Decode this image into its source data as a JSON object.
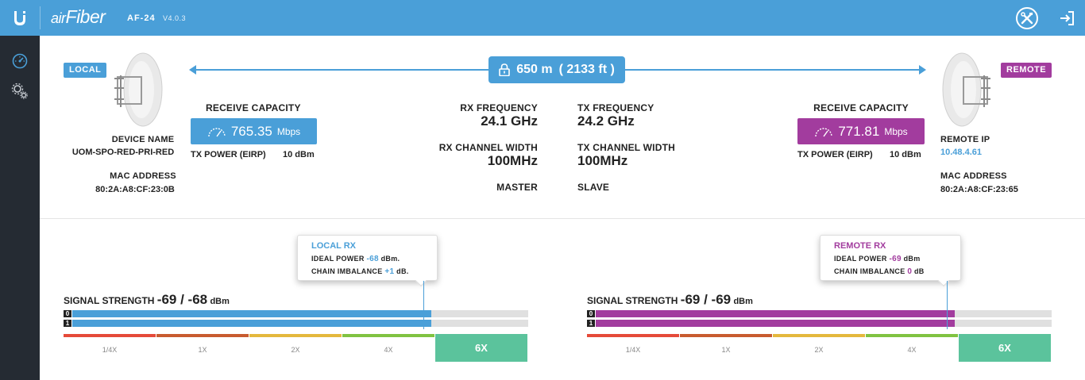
{
  "header": {
    "brand_a": "air",
    "brand_b": "Fiber",
    "model": "AF-24",
    "version": "V4.0.3"
  },
  "sidebar": {
    "items": [
      {
        "icon": "speedometer-icon"
      },
      {
        "icon": "gear-icon"
      }
    ]
  },
  "colors": {
    "accent_blue": "#4a9fd8",
    "accent_purple": "#a23c9e",
    "sidebar": "#252b33",
    "green_6x": "#5bc39c"
  },
  "link": {
    "distance": "650 m",
    "distance_ft": "( 2133 ft )",
    "rx_frequency_label": "RX FREQUENCY",
    "rx_frequency": "24.1 GHz",
    "tx_frequency_label": "TX FREQUENCY",
    "tx_frequency": "24.2 GHz",
    "rx_width_label": "RX CHANNEL WIDTH",
    "rx_width": "100MHz",
    "tx_width_label": "TX CHANNEL WIDTH",
    "tx_width": "100MHz",
    "local_role": "MASTER",
    "remote_role": "SLAVE"
  },
  "local": {
    "badge": "LOCAL",
    "device_name_label": "DEVICE NAME",
    "device_name": "UOM-SPO-RED-PRI-RED",
    "mac_label": "MAC ADDRESS",
    "mac": "80:2A:A8:CF:23:0B",
    "capacity_label": "RECEIVE CAPACITY",
    "capacity": "765.35",
    "capacity_unit": "Mbps",
    "tx_power_label": "TX POWER (EIRP)",
    "tx_power": "10 dBm",
    "rx_tip": {
      "title": "LOCAL RX",
      "ideal_label": "IDEAL POWER",
      "ideal_value": "-68",
      "ideal_unit": "dBm.",
      "chain_label": "CHAIN IMBALANCE",
      "chain_value": "+1",
      "chain_unit": "dB."
    },
    "signal": {
      "label": "SIGNAL STRENGTH",
      "value": "-69 / -68",
      "unit": "dBm",
      "chain0_fraction": 0.787,
      "chain1_fraction": 0.787,
      "ideal_fraction": 0.77
    },
    "modulation": [
      "1/4X",
      "1X",
      "2X",
      "4X",
      "6X"
    ]
  },
  "remote": {
    "badge": "REMOTE",
    "ip_label": "REMOTE IP",
    "ip": "10.48.4.61",
    "mac_label": "MAC ADDRESS",
    "mac": "80:2A:A8:CF:23:65",
    "capacity_label": "RECEIVE CAPACITY",
    "capacity": "771.81",
    "capacity_unit": "Mbps",
    "tx_power_label": "TX POWER (EIRP)",
    "tx_power": "10 dBm",
    "rx_tip": {
      "title": "REMOTE RX",
      "ideal_label": "IDEAL POWER",
      "ideal_value": "-69",
      "ideal_unit": "dBm",
      "chain_label": "CHAIN IMBALANCE",
      "chain_value": "0",
      "chain_unit": "dB"
    },
    "signal": {
      "label": "SIGNAL STRENGTH",
      "value": "-69 / -69",
      "unit": "dBm",
      "chain0_fraction": 0.787,
      "chain1_fraction": 0.787,
      "ideal_fraction": 0.77
    },
    "modulation": [
      "1/4X",
      "1X",
      "2X",
      "4X",
      "6X"
    ]
  },
  "chain_labels": [
    "0",
    "1"
  ]
}
